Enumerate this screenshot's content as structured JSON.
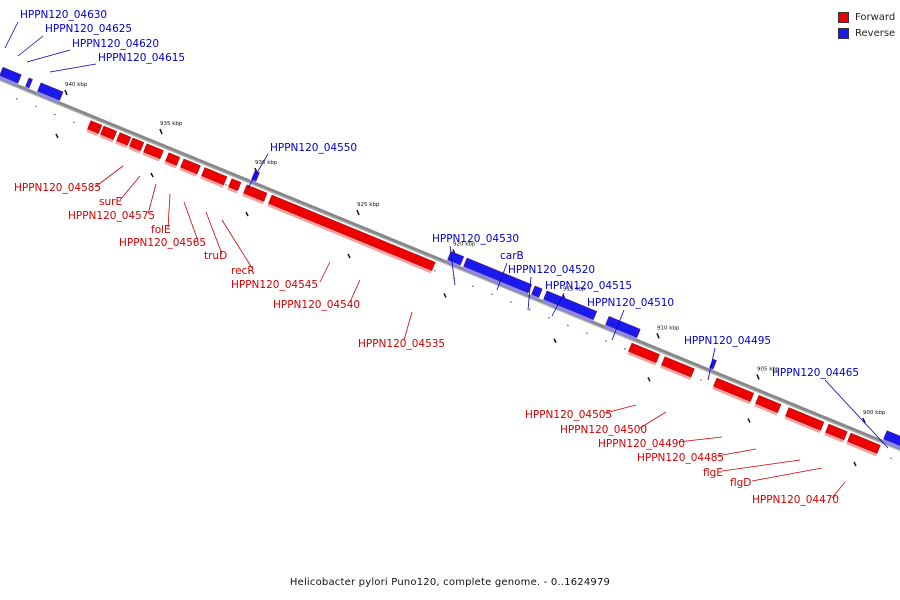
{
  "legend": {
    "forward": {
      "label": "Forward",
      "color": "#ee0000"
    },
    "reverse": {
      "label": "Reverse",
      "color": "#1a1aee"
    }
  },
  "caption": "Helicobacter pylori Puno120, complete genome. - 0..1624979",
  "kbp_marks": [
    "940 kbp",
    "935 kbp",
    "930 kbp",
    "925 kbp",
    "920 kbp",
    "915 kbp",
    "910 kbp",
    "905 kbp",
    "900 kbp"
  ],
  "reverse_labels": [
    "HPPN120_04630",
    "HPPN120_04625",
    "HPPN120_04620",
    "HPPN120_04615",
    "HPPN120_04550",
    "HPPN120_04530",
    "carB",
    "HPPN120_04520",
    "HPPN120_04515",
    "HPPN120_04510",
    "HPPN120_04495",
    "HPPN120_04465"
  ],
  "forward_labels": [
    "HPPN120_04585",
    "surE",
    "HPPN120_04575",
    "folE",
    "HPPN120_04565",
    "truD",
    "recR",
    "HPPN120_04545",
    "HPPN120_04540",
    "HPPN120_04535",
    "HPPN120_04505",
    "HPPN120_04500",
    "HPPN120_04490",
    "HPPN120_04485",
    "flgE",
    "flgD",
    "HPPN120_04470"
  ]
}
